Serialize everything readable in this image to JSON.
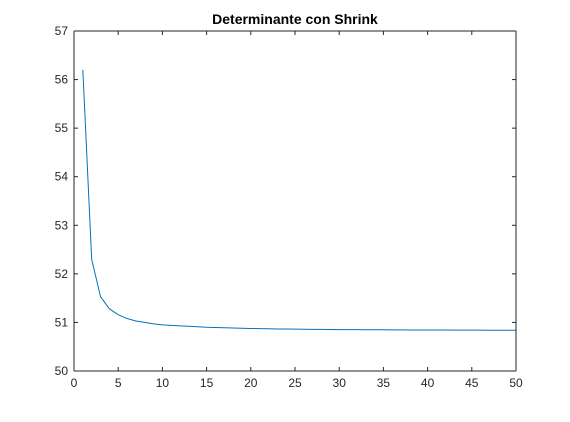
{
  "chart_data": {
    "type": "line",
    "title": "Determinante con Shrink",
    "xlabel": "",
    "ylabel": "",
    "xlim": [
      0,
      50
    ],
    "ylim": [
      50,
      57
    ],
    "xticks": [
      0,
      5,
      10,
      15,
      20,
      25,
      30,
      35,
      40,
      45,
      50
    ],
    "yticks": [
      50,
      51,
      52,
      53,
      54,
      55,
      56,
      57
    ],
    "grid": false,
    "series": [
      {
        "color": "#0072BD",
        "x": [
          1,
          2,
          3,
          4,
          5,
          6,
          7,
          8,
          9,
          10,
          11,
          12,
          13,
          14,
          15,
          16,
          17,
          18,
          19,
          20,
          21,
          22,
          23,
          24,
          25,
          26,
          27,
          28,
          29,
          30,
          31,
          32,
          33,
          34,
          35,
          36,
          37,
          38,
          39,
          40,
          41,
          42,
          43,
          44,
          45,
          46,
          47,
          48,
          49,
          50
        ],
        "y": [
          56.2,
          52.3,
          51.53,
          51.28,
          51.16,
          51.08,
          51.03,
          51.0,
          50.97,
          50.95,
          50.94,
          50.93,
          50.92,
          50.91,
          50.9,
          50.895,
          50.89,
          50.885,
          50.88,
          50.875,
          50.872,
          50.869,
          50.866,
          50.864,
          50.862,
          50.86,
          50.858,
          50.856,
          50.855,
          50.853,
          50.852,
          50.851,
          50.85,
          50.849,
          50.848,
          50.847,
          50.846,
          50.845,
          50.845,
          50.844,
          50.843,
          50.843,
          50.842,
          50.842,
          50.841,
          50.841,
          50.84,
          50.84,
          50.84,
          50.839
        ]
      }
    ]
  }
}
